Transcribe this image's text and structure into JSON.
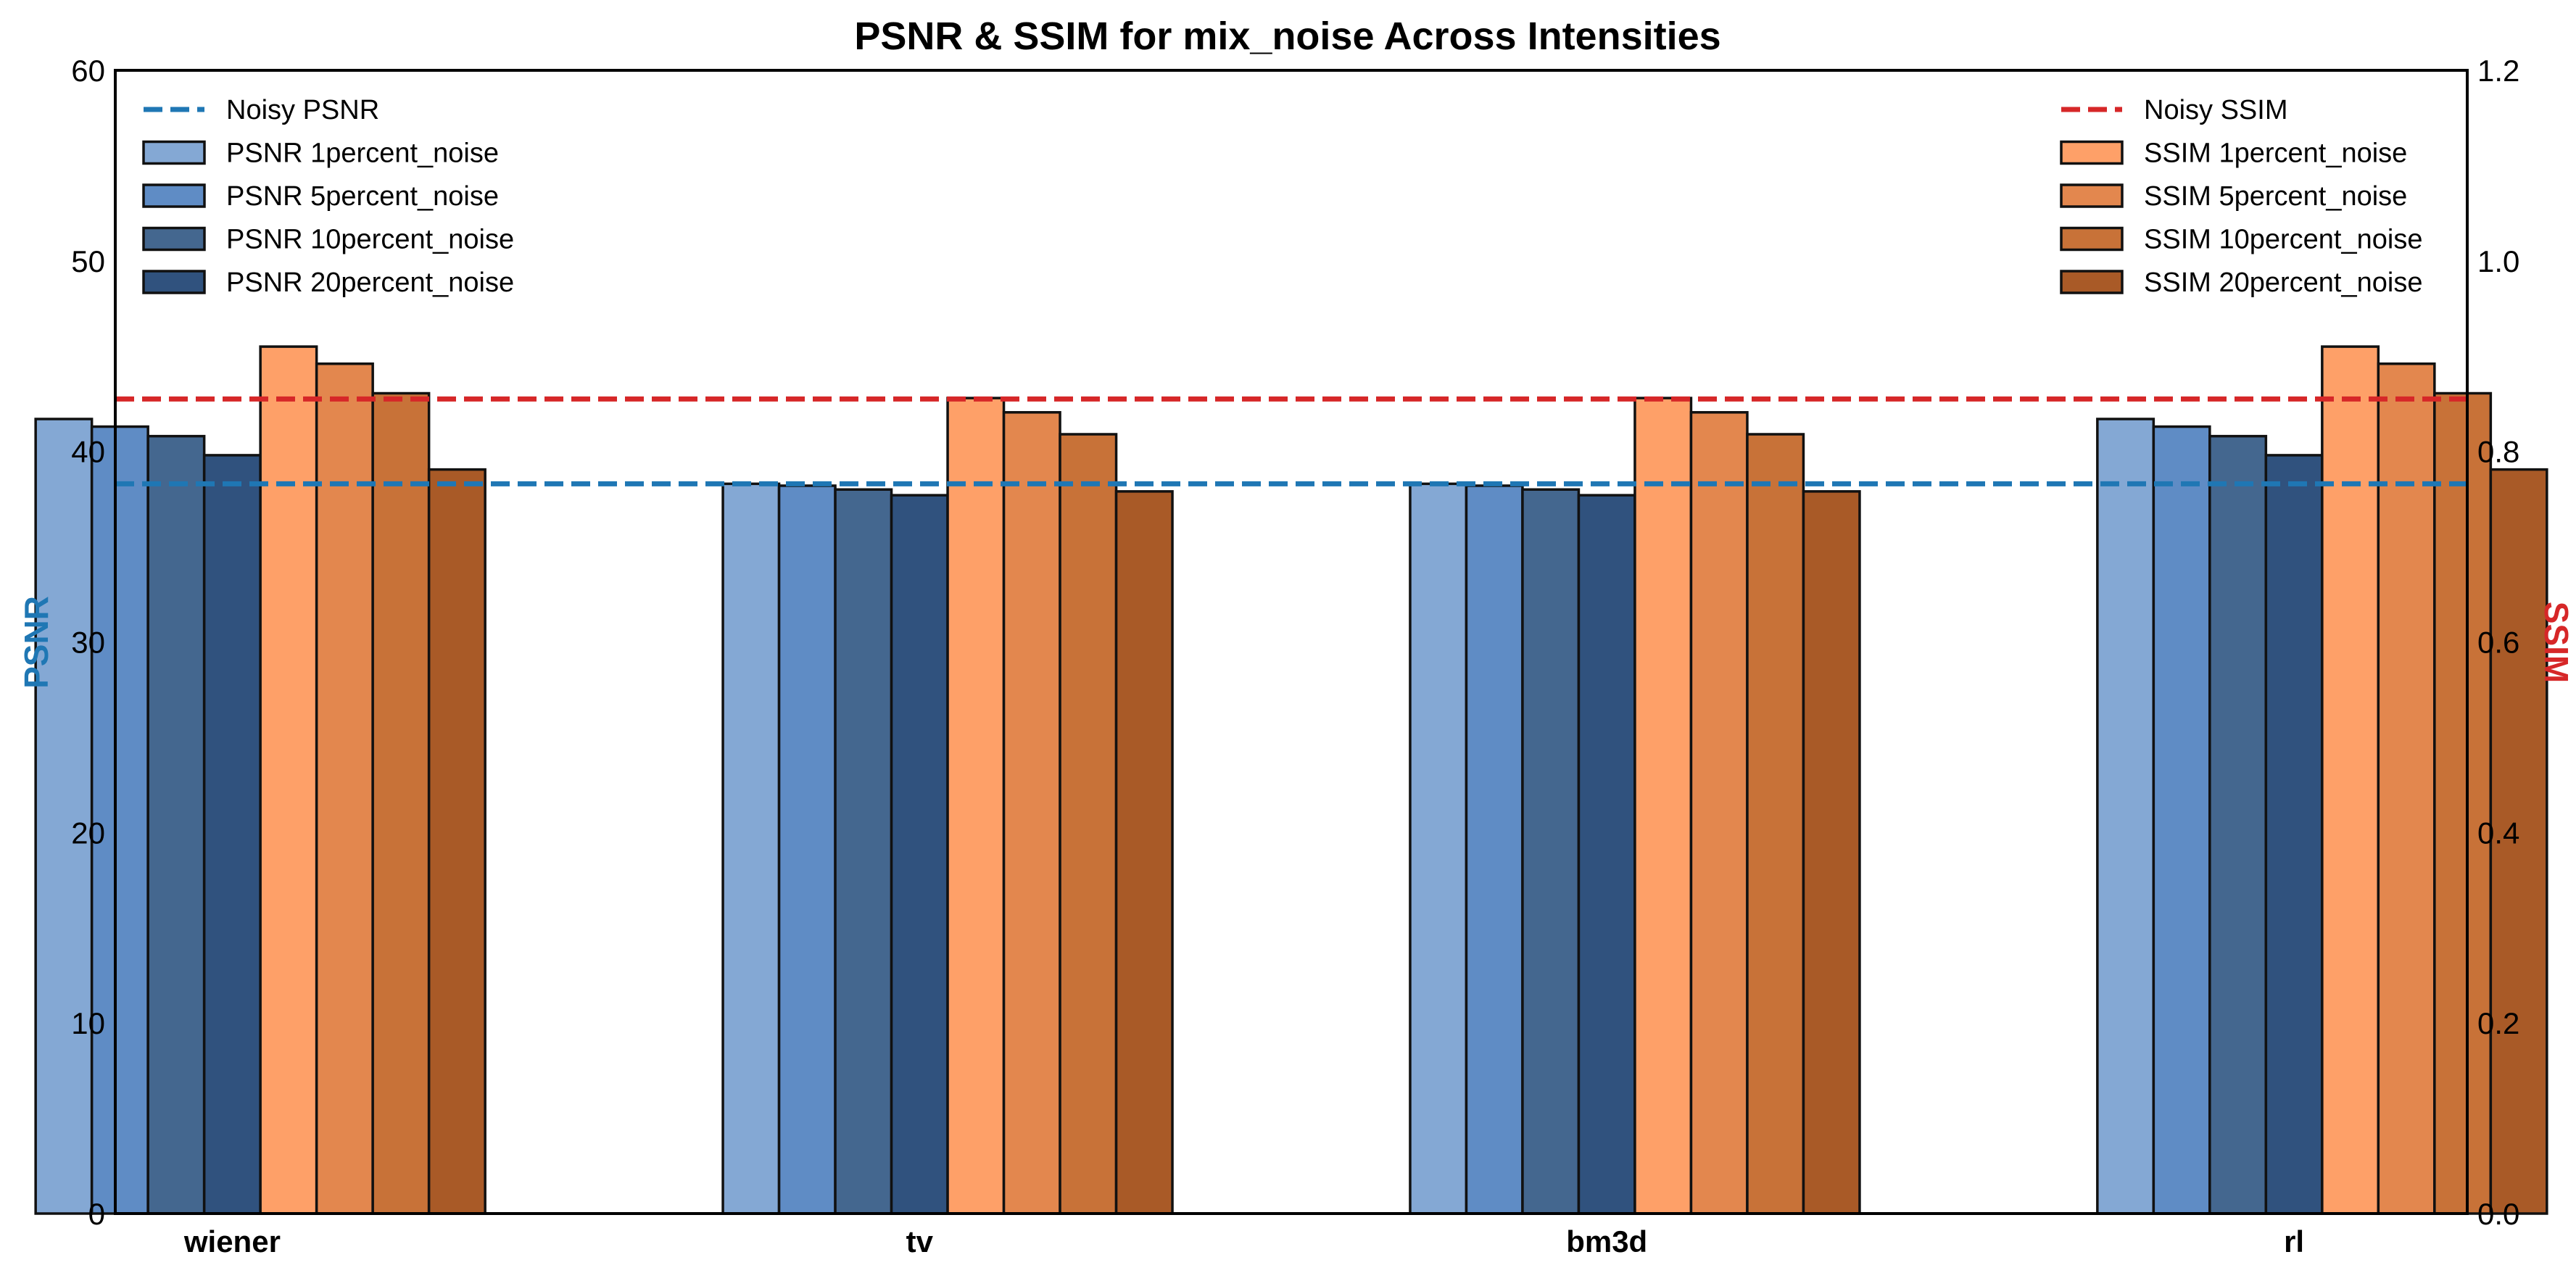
{
  "chart_data": {
    "type": "bar",
    "title": "PSNR & SSIM for mix_noise Across Intensities",
    "categories": [
      "wiener",
      "tv",
      "bm3d",
      "rl"
    ],
    "y_left": {
      "label": "PSNR",
      "label_color": "#1f77b4",
      "range": [
        0,
        60
      ],
      "ticks": [
        0,
        10,
        20,
        30,
        40,
        50,
        60
      ]
    },
    "y_right": {
      "label": "SSIM",
      "label_color": "#d62728",
      "range": [
        0,
        1.2
      ],
      "ticks": [
        "0.0",
        "0.2",
        "0.4",
        "0.6",
        "0.8",
        "1.0",
        "1.2"
      ]
    },
    "grid": false,
    "series": [
      {
        "name": "PSNR 1percent_noise",
        "axis": "left",
        "color": "#84a8d4",
        "values": [
          41.7,
          38.3,
          38.3,
          41.7
        ]
      },
      {
        "name": "PSNR 5percent_noise",
        "axis": "left",
        "color": "#5f8cc5",
        "values": [
          41.3,
          38.2,
          38.2,
          41.3
        ]
      },
      {
        "name": "PSNR 10percent_noise",
        "axis": "left",
        "color": "#44678f",
        "values": [
          40.8,
          38.0,
          38.0,
          40.8
        ]
      },
      {
        "name": "PSNR 20percent_noise",
        "axis": "left",
        "color": "#30527e",
        "values": [
          39.8,
          37.7,
          37.7,
          39.8
        ]
      },
      {
        "name": "SSIM 1percent_noise",
        "axis": "right",
        "color": "#fea068",
        "values": [
          0.91,
          0.856,
          0.856,
          0.91
        ]
      },
      {
        "name": "SSIM 5percent_noise",
        "axis": "right",
        "color": "#e3874e",
        "values": [
          0.892,
          0.841,
          0.841,
          0.892
        ]
      },
      {
        "name": "SSIM 10percent_noise",
        "axis": "right",
        "color": "#c87238",
        "values": [
          0.861,
          0.818,
          0.818,
          0.861
        ]
      },
      {
        "name": "SSIM 20percent_noise",
        "axis": "right",
        "color": "#a95a27",
        "values": [
          0.781,
          0.758,
          0.758,
          0.781
        ]
      }
    ],
    "reference_lines": [
      {
        "name": "Noisy PSNR",
        "axis": "left",
        "value": 38.3,
        "color": "#1f77b4",
        "style": "dashed"
      },
      {
        "name": "Noisy SSIM",
        "axis": "right",
        "value": 0.855,
        "color": "#d62728",
        "style": "dashed"
      }
    ],
    "legends": [
      {
        "placement": "top-left",
        "entries": [
          "Noisy PSNR",
          "PSNR 1percent_noise",
          "PSNR 5percent_noise",
          "PSNR 10percent_noise",
          "PSNR 20percent_noise"
        ]
      },
      {
        "placement": "top-right",
        "entries": [
          "Noisy SSIM",
          "SSIM 1percent_noise",
          "SSIM 5percent_noise",
          "SSIM 10percent_noise",
          "SSIM 20percent_noise"
        ]
      }
    ]
  }
}
